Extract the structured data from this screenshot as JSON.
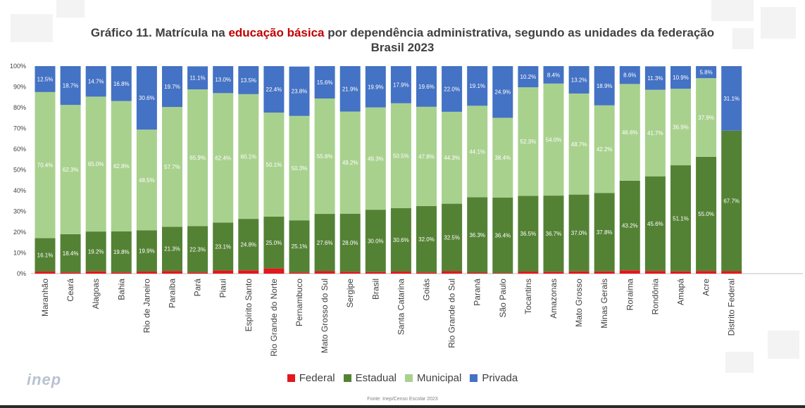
{
  "title_prefix": "Gráfico 11. Matrícula na ",
  "title_highlight": "educação básica",
  "title_suffix": " por dependência administrativa, segundo as unidades da federação",
  "subtitle": "Brasil 2023",
  "logo_text": "inep",
  "source": "Fonte: Inep/Censo Escolar 2023",
  "colors": {
    "Federal": "#e3171c",
    "Estadual": "#548235",
    "Municipal": "#a9d18e",
    "Privada": "#4472c4",
    "highlight": "#c00000"
  },
  "legend": [
    {
      "name": "Federal",
      "color": "#e3171c"
    },
    {
      "name": "Estadual",
      "color": "#548235"
    },
    {
      "name": "Municipal",
      "color": "#a9d18e"
    },
    {
      "name": "Privada",
      "color": "#4472c4"
    }
  ],
  "chart_data": {
    "type": "bar",
    "stacked": true,
    "title": "Gráfico 11. Matrícula na educação básica por dependência administrativa, segundo as unidades da federação",
    "subtitle": "Brasil 2023",
    "ylim": [
      0,
      100
    ],
    "yticks": [
      "0%",
      "10%",
      "20%",
      "30%",
      "40%",
      "50%",
      "60%",
      "70%",
      "80%",
      "90%",
      "100%"
    ],
    "grid": false,
    "legend_position": "bottom",
    "categories": [
      "Maranhão",
      "Ceará",
      "Alagoas",
      "Bahia",
      "Rio de Janeiro",
      "Paraíba",
      "Pará",
      "Piauí",
      "Espírito Santo",
      "Rio Grande do Norte",
      "Pernambuco",
      "Mato Grosso do Sul",
      "Sergipe",
      "Brasil",
      "Santa Catarina",
      "Goiás",
      "Rio Grande do Sul",
      "Paraná",
      "São Paulo",
      "Tocantins",
      "Amazonas",
      "Mato Grosso",
      "Minas Gerais",
      "Roraima",
      "Rondônia",
      "Amapá",
      "Acre",
      "Distrito Federal"
    ],
    "series": [
      {
        "name": "Federal",
        "values": [
          1.0,
          0.6,
          1.1,
          0.6,
          1.0,
          1.3,
          0.6,
          1.5,
          1.6,
          2.5,
          0.6,
          1.2,
          0.9,
          0.8,
          1.0,
          0.6,
          1.2,
          0.5,
          0.3,
          1.0,
          0.9,
          1.1,
          1.1,
          1.6,
          1.3,
          1.1,
          1.3,
          1.2
        ]
      },
      {
        "name": "Estadual",
        "values": [
          16.1,
          18.4,
          19.2,
          19.8,
          19.9,
          21.3,
          22.3,
          23.1,
          24.8,
          25.0,
          25.1,
          27.6,
          28.0,
          30.0,
          30.6,
          32.0,
          32.5,
          36.3,
          36.4,
          36.5,
          36.7,
          37.0,
          37.8,
          43.2,
          45.6,
          51.1,
          55.0,
          67.7
        ]
      },
      {
        "name": "Municipal",
        "values": [
          70.4,
          62.3,
          65.0,
          62.8,
          48.5,
          57.7,
          65.9,
          62.4,
          60.1,
          50.1,
          50.3,
          55.6,
          49.2,
          49.3,
          50.5,
          47.8,
          44.3,
          44.1,
          38.4,
          52.3,
          54.0,
          48.7,
          42.2,
          46.6,
          41.7,
          36.9,
          37.9,
          0
        ]
      },
      {
        "name": "Privada",
        "values": [
          12.5,
          18.7,
          14.7,
          16.8,
          30.6,
          19.7,
          11.1,
          13.0,
          13.5,
          22.4,
          23.8,
          15.6,
          21.9,
          19.9,
          17.9,
          19.6,
          22.0,
          19.1,
          24.9,
          10.2,
          8.4,
          13.2,
          18.9,
          8.6,
          11.3,
          10.9,
          5.8,
          31.1
        ]
      }
    ],
    "data_labels": {
      "Estadual": [
        "16.1%",
        "18.4%",
        "19.2%",
        "19.8%",
        "19.9%",
        "21.3%",
        "22.3%",
        "23.1%",
        "24.8%",
        "25.0%",
        "25.1%",
        "27.6%",
        "28.0%",
        "30.0%",
        "30.6%",
        "32.0%",
        "32.5%",
        "36.3%",
        "36.4%",
        "36.5%",
        "36.7%",
        "37.0%",
        "37.8%",
        "43.2%",
        "45.6%",
        "51.1%",
        "55.0%",
        "67.7%"
      ],
      "Municipal": [
        "70.4%",
        "62.3%",
        "65.0%",
        "62.8%",
        "48.5%",
        "57.7%",
        "65.9%",
        "62.4%",
        "60.1%",
        "50.1%",
        "50.3%",
        "55.6%",
        "49.2%",
        "49.3%",
        "50.5%",
        "47.8%",
        "44.3%",
        "44.1%",
        "38.4%",
        "52.3%",
        "54.0%",
        "48.7%",
        "42.2%",
        "46.6%",
        "41.7%",
        "36.9%",
        "37.9%",
        ""
      ],
      "Privada": [
        "12.5%",
        "18.7%",
        "14.7%",
        "16.8%",
        "30.6%",
        "19.7%",
        "11.1%",
        "13.0%",
        "13.5%",
        "22.4%",
        "23.8%",
        "15.6%",
        "21.9%",
        "19.9%",
        "17.9%",
        "19.6%",
        "22.0%",
        "19.1%",
        "24.9%",
        "10.2%",
        "8.4%",
        "13.2%",
        "18.9%",
        "8.6%",
        "11.3%",
        "10.9%",
        "5.8%",
        "31.1%"
      ]
    }
  }
}
